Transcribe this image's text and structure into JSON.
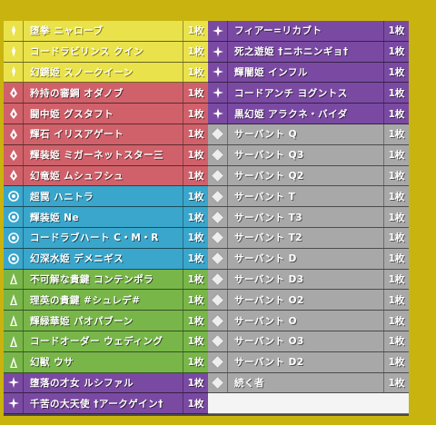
{
  "left_rows": [
    {
      "name": "堕拳 ニャローブ",
      "qty": "1枚",
      "color": "yellow",
      "icon": "light-icon"
    },
    {
      "name": "コードラビリンス クイン",
      "qty": "1枚",
      "color": "yellow",
      "icon": "light-icon"
    },
    {
      "name": "幻鏡姫 スノークイーン",
      "qty": "1枚",
      "color": "yellow",
      "icon": "light-icon"
    },
    {
      "name": "矜持の審鋼 オダノブ",
      "qty": "1枚",
      "color": "red",
      "icon": "fire-icon"
    },
    {
      "name": "闘中姫 グスタフト",
      "qty": "1枚",
      "color": "red",
      "icon": "fire-icon"
    },
    {
      "name": "輝石 イリスアゲート",
      "qty": "1枚",
      "color": "red",
      "icon": "fire-icon"
    },
    {
      "name": "輝装姫 ミガーネットスター三",
      "qty": "1枚",
      "color": "red",
      "icon": "fire-icon"
    },
    {
      "name": "幻竜姫 ムシュフシュ",
      "qty": "1枚",
      "color": "red",
      "icon": "fire-icon"
    },
    {
      "name": "超罠 ハニトラ",
      "qty": "1枚",
      "color": "blue",
      "icon": "water-icon"
    },
    {
      "name": "輝装姫 Ne",
      "qty": "1枚",
      "color": "blue",
      "icon": "water-icon"
    },
    {
      "name": "コードラブハート C・M・R",
      "qty": "1枚",
      "color": "blue",
      "icon": "water-icon"
    },
    {
      "name": "幻深水姫 デメニギス",
      "qty": "1枚",
      "color": "blue",
      "icon": "water-icon"
    },
    {
      "name": "不可解な貴鍵 コンテンポラ",
      "qty": "1枚",
      "color": "green",
      "icon": "nature-icon"
    },
    {
      "name": "理英の貴鍵 #シュレデ#",
      "qty": "1枚",
      "color": "green",
      "icon": "nature-icon"
    },
    {
      "name": "輝緑華姫 パオパブーン",
      "qty": "1枚",
      "color": "green",
      "icon": "nature-icon"
    },
    {
      "name": "コードオーダー ウェディング",
      "qty": "1枚",
      "color": "green",
      "icon": "nature-icon"
    },
    {
      "name": "幻獣 ウサ",
      "qty": "1枚",
      "color": "green",
      "icon": "nature-icon"
    },
    {
      "name": "堕落の才女 ルシファル",
      "qty": "1枚",
      "color": "purple",
      "icon": "darkness-icon"
    },
    {
      "name": "千苦の大天使 †アークゲイン†",
      "qty": "1枚",
      "color": "purple",
      "icon": "darkness-icon"
    }
  ],
  "right_rows": [
    {
      "name": "フィアー=リカブト",
      "qty": "1枚",
      "color": "purple",
      "icon": "darkness-icon"
    },
    {
      "name": "死之遊姫 †ニホニンギョ†",
      "qty": "1枚",
      "color": "purple",
      "icon": "darkness-icon"
    },
    {
      "name": "輝闇姫 インフル",
      "qty": "1枚",
      "color": "purple",
      "icon": "darkness-icon"
    },
    {
      "name": "コードアンチ ヨグントス",
      "qty": "1枚",
      "color": "purple",
      "icon": "darkness-icon"
    },
    {
      "name": "黒幻姫 アラクネ・バイダ",
      "qty": "1枚",
      "color": "purple",
      "icon": "darkness-icon"
    },
    {
      "name": "サーバント Q",
      "qty": "1枚",
      "color": "grey",
      "icon": "zero-icon"
    },
    {
      "name": "サーバント Q3",
      "qty": "1枚",
      "color": "grey",
      "icon": "zero-icon"
    },
    {
      "name": "サーバント Q2",
      "qty": "1枚",
      "color": "grey",
      "icon": "zero-icon"
    },
    {
      "name": "サーバント T",
      "qty": "1枚",
      "color": "grey",
      "icon": "zero-icon"
    },
    {
      "name": "サーバント T3",
      "qty": "1枚",
      "color": "grey",
      "icon": "zero-icon"
    },
    {
      "name": "サーバント T2",
      "qty": "1枚",
      "color": "grey",
      "icon": "zero-icon"
    },
    {
      "name": "サーバント D",
      "qty": "1枚",
      "color": "grey",
      "icon": "zero-icon"
    },
    {
      "name": "サーバント D3",
      "qty": "1枚",
      "color": "grey",
      "icon": "zero-icon"
    },
    {
      "name": "サーバント O2",
      "qty": "1枚",
      "color": "grey",
      "icon": "zero-icon"
    },
    {
      "name": "サーバント O",
      "qty": "1枚",
      "color": "grey",
      "icon": "zero-icon"
    },
    {
      "name": "サーバント O3",
      "qty": "1枚",
      "color": "grey",
      "icon": "zero-icon"
    },
    {
      "name": "サーバント D2",
      "qty": "1枚",
      "color": "grey",
      "icon": "zero-icon"
    },
    {
      "name": "続く者",
      "qty": "1枚",
      "color": "grey",
      "icon": "zero-icon"
    },
    {
      "name": "",
      "qty": "",
      "color": "white",
      "icon": ""
    }
  ]
}
